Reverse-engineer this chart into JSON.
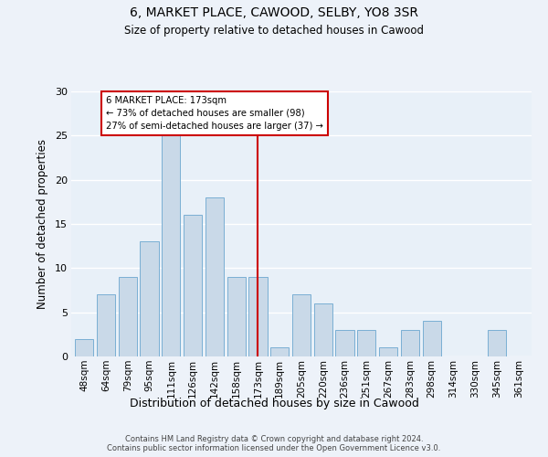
{
  "title": "6, MARKET PLACE, CAWOOD, SELBY, YO8 3SR",
  "subtitle": "Size of property relative to detached houses in Cawood",
  "xlabel": "Distribution of detached houses by size in Cawood",
  "ylabel": "Number of detached properties",
  "categories": [
    "48sqm",
    "64sqm",
    "79sqm",
    "95sqm",
    "111sqm",
    "126sqm",
    "142sqm",
    "158sqm",
    "173sqm",
    "189sqm",
    "205sqm",
    "220sqm",
    "236sqm",
    "251sqm",
    "267sqm",
    "283sqm",
    "298sqm",
    "314sqm",
    "330sqm",
    "345sqm",
    "361sqm"
  ],
  "values": [
    2,
    7,
    9,
    13,
    25,
    16,
    18,
    9,
    9,
    1,
    7,
    6,
    3,
    3,
    1,
    3,
    4,
    0,
    0,
    3,
    0
  ],
  "bar_color": "#c9d9e8",
  "bar_edge_color": "#7aafd4",
  "background_color": "#e8f0f8",
  "grid_color": "#ffffff",
  "vline_x_index": 8,
  "vline_color": "#cc0000",
  "annotation_line1": "6 MARKET PLACE: 173sqm",
  "annotation_line2": "← 73% of detached houses are smaller (98)",
  "annotation_line3": "27% of semi-detached houses are larger (37) →",
  "annotation_box_color": "#cc0000",
  "ylim": [
    0,
    30
  ],
  "yticks": [
    0,
    5,
    10,
    15,
    20,
    25,
    30
  ],
  "fig_bg_color": "#edf2f9",
  "footnote": "Contains HM Land Registry data © Crown copyright and database right 2024.\nContains public sector information licensed under the Open Government Licence v3.0."
}
